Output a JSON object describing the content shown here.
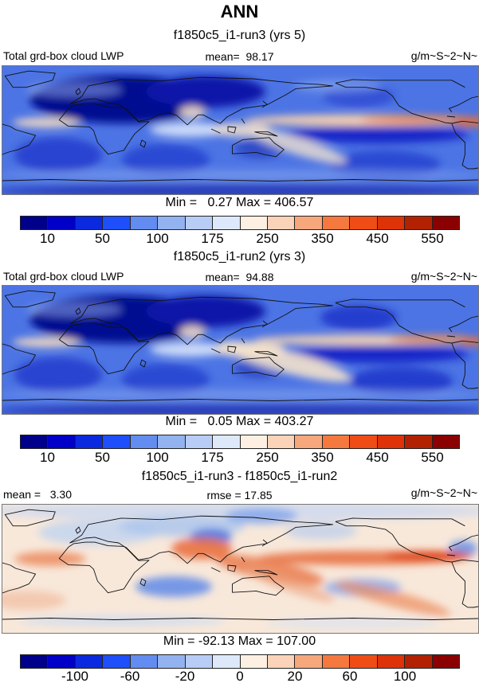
{
  "title": "ANN",
  "palette": [
    "#00008B",
    "#0000C8",
    "#0B2ADF",
    "#1E4FFA",
    "#638CF0",
    "#93B2F0",
    "#B8CDF5",
    "#DDE9FA",
    "#FDF0E3",
    "#FAD3B9",
    "#F7A77C",
    "#F5793F",
    "#EF4D15",
    "#DE3309",
    "#B22202",
    "#8B0000"
  ],
  "panels": [
    {
      "subtitle": "f1850c5_i1-run3 (yrs 5)",
      "left_label": "Total grd-box cloud LWP",
      "center_label": "mean=  98.17",
      "units": "g/m~S~2~N~",
      "minmax": "Min =   0.27 Max = 406.57",
      "cbar_labels": [
        "10",
        "50",
        "100",
        "175",
        "250",
        "350",
        "450",
        "550"
      ],
      "cbar_positions": [
        1,
        3,
        5,
        7,
        9,
        11,
        13,
        15
      ]
    },
    {
      "subtitle": "f1850c5_i1-run2 (yrs 3)",
      "left_label": "Total grd-box cloud LWP",
      "center_label": "mean=  94.88",
      "units": "g/m~S~2~N~",
      "minmax": "Min =   0.05 Max = 403.27",
      "cbar_labels": [
        "10",
        "50",
        "100",
        "175",
        "250",
        "350",
        "450",
        "550"
      ],
      "cbar_positions": [
        1,
        3,
        5,
        7,
        9,
        11,
        13,
        15
      ]
    },
    {
      "subtitle": "f1850c5_i1-run3 - f1850c5_i1-run2",
      "left_label": "mean =   3.30",
      "center_label": "rmse = 17.85",
      "units": "g/m~S~2~N~",
      "minmax": "Min = -92.13 Max = 107.00",
      "cbar_labels": [
        "-100",
        "-60",
        "-20",
        "0",
        "20",
        "60",
        "100"
      ],
      "cbar_positions": [
        2,
        4,
        6,
        8,
        10,
        12,
        14
      ]
    }
  ],
  "chart_data": [
    {
      "type": "heatmap",
      "title": "f1850c5_i1-run3 (yrs 5)",
      "variable": "Total grd-box cloud LWP",
      "units": "g/m~S~2~N~",
      "projection": "global lat-lon map centered ~120E",
      "mean": 98.17,
      "min": 0.27,
      "max": 406.57,
      "colorbar_ticks": [
        10,
        50,
        100,
        175,
        250,
        350,
        450,
        550
      ],
      "colorbar_n_segments": 16,
      "legend_position": "below panel"
    },
    {
      "type": "heatmap",
      "title": "f1850c5_i1-run2 (yrs 3)",
      "variable": "Total grd-box cloud LWP",
      "units": "g/m~S~2~N~",
      "projection": "global lat-lon map centered ~120E",
      "mean": 94.88,
      "min": 0.05,
      "max": 403.27,
      "colorbar_ticks": [
        10,
        50,
        100,
        175,
        250,
        350,
        450,
        550
      ],
      "colorbar_n_segments": 16,
      "legend_position": "below panel"
    },
    {
      "type": "heatmap",
      "title": "f1850c5_i1-run3 - f1850c5_i1-run2",
      "variable": "Total grd-box cloud LWP difference",
      "units": "g/m~S~2~N~",
      "projection": "global lat-lon map centered ~120E",
      "mean": 3.3,
      "rmse": 17.85,
      "min": -92.13,
      "max": 107.0,
      "colorbar_ticks": [
        -100,
        -60,
        -20,
        0,
        20,
        60,
        100
      ],
      "colorbar_n_segments": 16,
      "legend_position": "below panel"
    }
  ]
}
